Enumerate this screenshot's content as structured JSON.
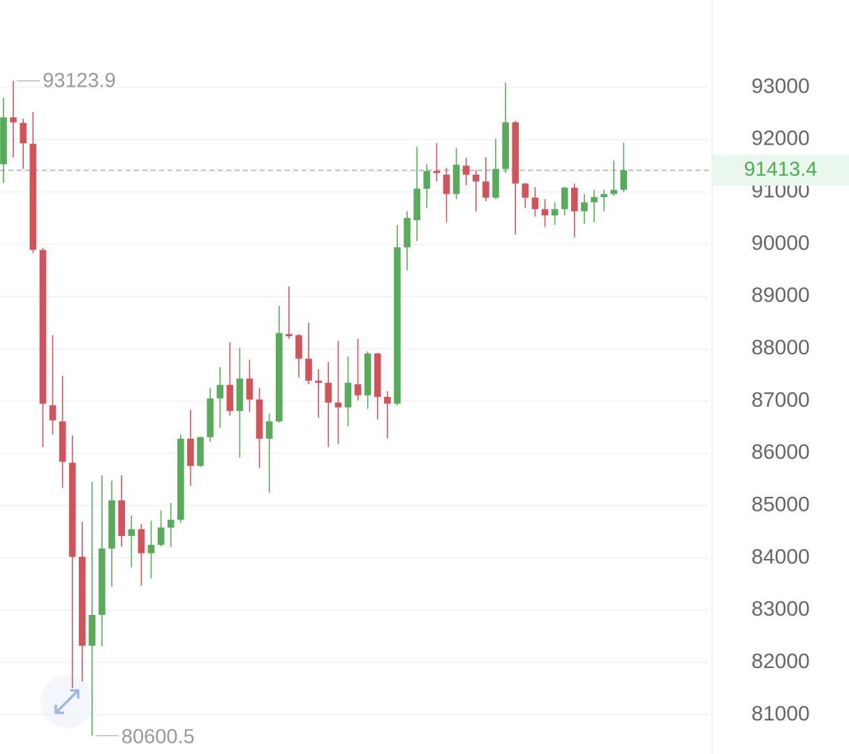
{
  "chart_data": {
    "type": "candlestick",
    "open": [
      91530,
      92425,
      92320,
      91920,
      89890,
      86920,
      86610,
      85820,
      84020,
      82320,
      82910,
      84180,
      85100,
      84420,
      84550,
      84090,
      84250,
      84580,
      84730,
      86280,
      85760,
      86310,
      87050,
      87310,
      86810,
      87430,
      87030,
      86280,
      86610,
      88280,
      88260,
      87810,
      87390,
      87350,
      86970,
      86880,
      87320,
      87110,
      87910,
      87080,
      86950,
      89940,
      90460,
      91060,
      91400,
      91330,
      90960,
      91500,
      91330,
      91200,
      90890,
      91440,
      92330,
      91160,
      90890,
      90670,
      90550,
      90670,
      91080,
      90630,
      90800,
      90900,
      90960,
      91040
    ],
    "high": [
      92800,
      93123.9,
      92400,
      92530,
      89930,
      88260,
      87480,
      86340,
      84690,
      85450,
      85580,
      85480,
      85580,
      84810,
      84650,
      84710,
      84910,
      85050,
      86360,
      86830,
      86320,
      87250,
      87650,
      88120,
      88020,
      87790,
      87250,
      86760,
      88820,
      89190,
      88280,
      88500,
      87610,
      87750,
      88150,
      87850,
      88190,
      87950,
      87920,
      87190,
      90370,
      90630,
      91860,
      91530,
      91930,
      91460,
      91840,
      91650,
      91420,
      91660,
      92020,
      93090,
      92360,
      91170,
      91090,
      90860,
      90800,
      91100,
      91160,
      90960,
      91040,
      91040,
      91600,
      91940
    ],
    "low": [
      91170,
      91660,
      91440,
      89830,
      86120,
      86360,
      85340,
      81510,
      81640,
      80600.5,
      82310,
      83450,
      84220,
      83820,
      83470,
      83610,
      84220,
      84210,
      84670,
      85380,
      85740,
      86220,
      86490,
      86720,
      85920,
      86790,
      85720,
      85250,
      86590,
      88190,
      87450,
      87320,
      86680,
      86120,
      86180,
      86520,
      87010,
      86850,
      86650,
      86290,
      86920,
      89500,
      90060,
      90690,
      91200,
      90420,
      90860,
      91130,
      90630,
      90820,
      90860,
      91360,
      90190,
      90690,
      90530,
      90330,
      90370,
      90550,
      90130,
      90390,
      90420,
      90630,
      90930,
      91000
    ],
    "close": [
      92425,
      92330,
      91930,
      89890,
      86950,
      86630,
      85840,
      84020,
      82320,
      82910,
      84180,
      85100,
      84420,
      84550,
      84090,
      84250,
      84580,
      84730,
      86280,
      85760,
      86310,
      87050,
      87310,
      86810,
      87430,
      87030,
      86280,
      86610,
      88300,
      88240,
      87810,
      87390,
      87350,
      86970,
      86880,
      87350,
      87110,
      87910,
      87080,
      86950,
      89940,
      90500,
      91060,
      91400,
      91360,
      90960,
      91520,
      91330,
      91200,
      90890,
      91440,
      92330,
      91160,
      90890,
      90670,
      90550,
      90670,
      91080,
      90630,
      90800,
      90900,
      90960,
      91040,
      91413.4
    ],
    "up_color": "#57ab5a",
    "down_color": "#d4535b",
    "ylim": [
      80250,
      94670
    ],
    "yticks": [
      81000,
      82000,
      83000,
      84000,
      85000,
      86000,
      87000,
      88000,
      89000,
      90000,
      91000,
      92000,
      93000
    ],
    "grid": true,
    "high_annotation": 93123.9,
    "low_annotation": 80600.5,
    "last_price": 91413.4
  }
}
